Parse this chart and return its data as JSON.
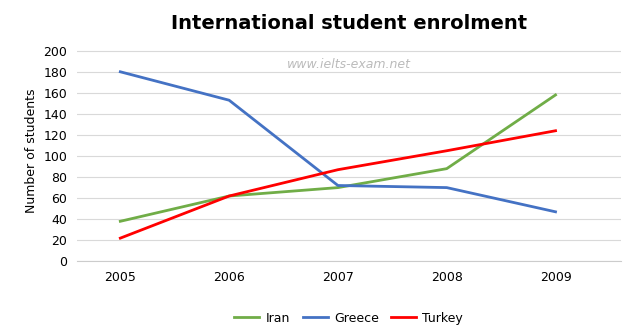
{
  "title": "International student enrolment",
  "watermark": "www.ielts-exam.net",
  "ylabel": "Number of students",
  "years": [
    2005,
    2006,
    2007,
    2008,
    2009
  ],
  "iran": [
    38,
    62,
    70,
    88,
    158
  ],
  "greece": [
    180,
    153,
    72,
    70,
    47
  ],
  "turkey": [
    22,
    62,
    87,
    105,
    124
  ],
  "iran_color": "#70AD47",
  "greece_color": "#4472C4",
  "turkey_color": "#FF0000",
  "ylim": [
    0,
    210
  ],
  "yticks": [
    0,
    20,
    40,
    60,
    80,
    100,
    120,
    140,
    160,
    180,
    200
  ],
  "linewidth": 2.0,
  "title_fontsize": 14,
  "legend_fontsize": 9,
  "axis_label_fontsize": 9,
  "tick_fontsize": 9,
  "watermark_color": "#BBBBBB",
  "watermark_fontsize": 9,
  "background_color": "#FFFFFF",
  "grid_color": "#D9D9D9"
}
